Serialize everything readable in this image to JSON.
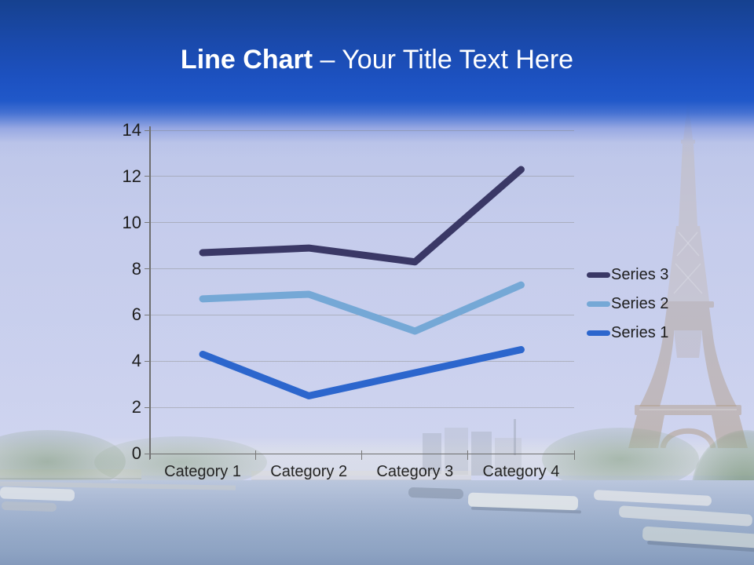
{
  "title": {
    "bold": "Line Chart",
    "regular": "– Your Title Text Here"
  },
  "header": {
    "background_blue": "#1d52c2",
    "text_color": "#ffffff"
  },
  "chart_data": {
    "type": "line",
    "stacked": true,
    "title": "",
    "xlabel": "",
    "ylabel": "",
    "categories": [
      "Category 1",
      "Category 2",
      "Category 3",
      "Category 4"
    ],
    "series": [
      {
        "name": "Series 1",
        "values": [
          4.3,
          2.5,
          3.5,
          4.5
        ],
        "color": "#2c66cd"
      },
      {
        "name": "Series 2",
        "values": [
          6.7,
          6.9,
          5.3,
          7.3
        ],
        "color": "#75a8d6"
      },
      {
        "name": "Series 3",
        "values": [
          8.7,
          8.9,
          8.3,
          12.3
        ],
        "color": "#3a3866"
      }
    ],
    "note": "Stacked line chart; series values are the cumulative plotted positions read from the y-axis.",
    "ylim": [
      0,
      14
    ],
    "yticks": [
      0,
      2,
      4,
      6,
      8,
      10,
      12,
      14
    ],
    "grid": true,
    "legend": {
      "position": "right-middle",
      "entries": [
        "Series 3",
        "Series 2",
        "Series 1"
      ],
      "text_color": "#1d1d1d"
    },
    "axis_color": "#6f6f6f",
    "tick_label_color": "#1d1d1d"
  }
}
